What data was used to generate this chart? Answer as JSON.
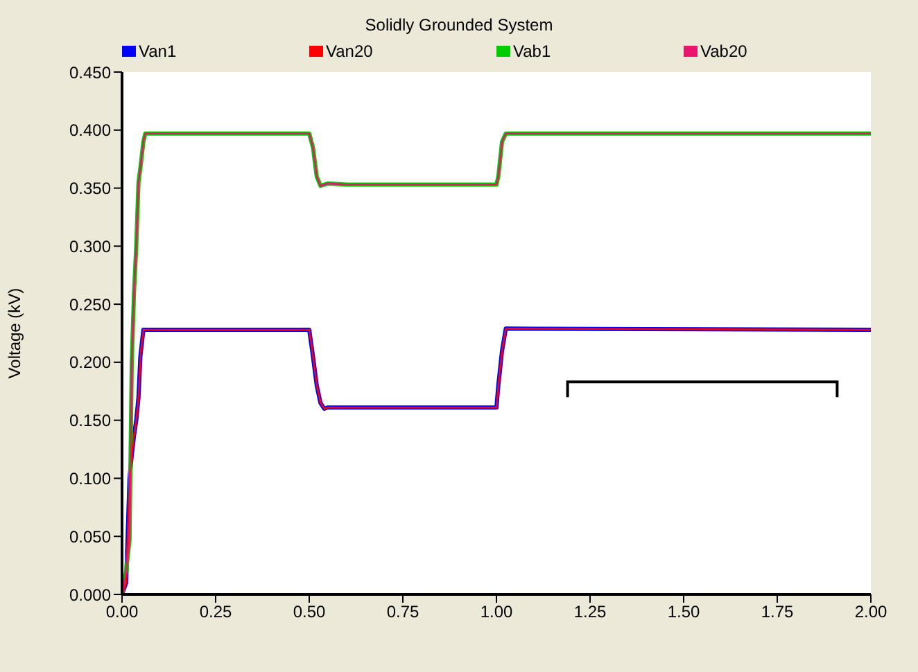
{
  "chart_data": {
    "type": "line",
    "title": "Solidly Grounded System",
    "ylabel": "Voltage (kV)",
    "xlim": [
      0,
      2
    ],
    "xticks": [
      {
        "value": 0,
        "label": "0.00"
      },
      {
        "value": 0.25,
        "label": "0.25"
      },
      {
        "value": 0.5,
        "label": "0.50"
      },
      {
        "value": 0.75,
        "label": "0.75"
      },
      {
        "value": 1,
        "label": "1.00"
      },
      {
        "value": 1.25,
        "label": "1.25"
      },
      {
        "value": 1.5,
        "label": "1.50"
      },
      {
        "value": 1.75,
        "label": "1.75"
      },
      {
        "value": 2,
        "label": "2.00"
      }
    ],
    "ylim": [
      0,
      0.45
    ],
    "yticks": [
      {
        "value": 0,
        "label": "0.000"
      },
      {
        "value": 0.05,
        "label": "0.050"
      },
      {
        "value": 0.1,
        "label": "0.100"
      },
      {
        "value": 0.15,
        "label": "0.150"
      },
      {
        "value": 0.2,
        "label": "0.200"
      },
      {
        "value": 0.25,
        "label": "0.250"
      },
      {
        "value": 0.3,
        "label": "0.300"
      },
      {
        "value": 0.35,
        "label": "0.350"
      },
      {
        "value": 0.4,
        "label": "0.400"
      },
      {
        "value": 0.45,
        "label": "0.450"
      }
    ],
    "legend": "top",
    "marker": "none",
    "line_style": "solid",
    "series": [
      {
        "name": "Van1",
        "color": "#0000ff",
        "x": [
          0,
          0.011,
          0.02,
          0.026,
          0.032,
          0.038,
          0.044,
          0.049,
          0.057,
          0.5,
          0.51,
          0.52,
          0.53,
          0.54,
          0.55,
          1.0,
          1.005,
          1.015,
          1.025,
          2.0
        ],
        "values": [
          0,
          0.01,
          0.1,
          0.12,
          0.137,
          0.15,
          0.17,
          0.205,
          0.228,
          0.228,
          0.205,
          0.18,
          0.165,
          0.16,
          0.161,
          0.161,
          0.18,
          0.21,
          0.229,
          0.228
        ]
      },
      {
        "name": "Van20",
        "color": "#ff0000",
        "x": [
          0,
          0.011,
          0.02,
          0.026,
          0.032,
          0.038,
          0.044,
          0.049,
          0.057,
          0.5,
          0.51,
          0.52,
          0.53,
          0.54,
          0.55,
          1.0,
          1.005,
          1.015,
          1.025,
          2.0
        ],
        "values": [
          0,
          0.01,
          0.1,
          0.12,
          0.137,
          0.15,
          0.17,
          0.205,
          0.228,
          0.228,
          0.205,
          0.18,
          0.165,
          0.16,
          0.161,
          0.161,
          0.18,
          0.21,
          0.229,
          0.228
        ]
      },
      {
        "name": "Vab1",
        "color": "#00cc00",
        "x": [
          0,
          0.011,
          0.02,
          0.026,
          0.032,
          0.038,
          0.044,
          0.05,
          0.057,
          0.062,
          0.5,
          0.51,
          0.52,
          0.53,
          0.55,
          0.6,
          1.0,
          1.005,
          1.015,
          1.025,
          2.0
        ],
        "values": [
          0,
          0.02,
          0.047,
          0.2,
          0.26,
          0.3,
          0.355,
          0.37,
          0.39,
          0.397,
          0.397,
          0.385,
          0.36,
          0.352,
          0.354,
          0.353,
          0.353,
          0.36,
          0.39,
          0.397,
          0.397
        ]
      },
      {
        "name": "Vab20",
        "color": "#e8166e",
        "x": [
          0,
          0.011,
          0.02,
          0.026,
          0.032,
          0.038,
          0.044,
          0.05,
          0.057,
          0.062,
          0.5,
          0.51,
          0.52,
          0.53,
          0.55,
          0.6,
          1.0,
          1.005,
          1.015,
          1.025,
          2.0
        ],
        "values": [
          0,
          0.02,
          0.047,
          0.2,
          0.26,
          0.3,
          0.355,
          0.37,
          0.39,
          0.397,
          0.397,
          0.385,
          0.36,
          0.352,
          0.354,
          0.353,
          0.353,
          0.36,
          0.39,
          0.397,
          0.397
        ]
      }
    ]
  }
}
